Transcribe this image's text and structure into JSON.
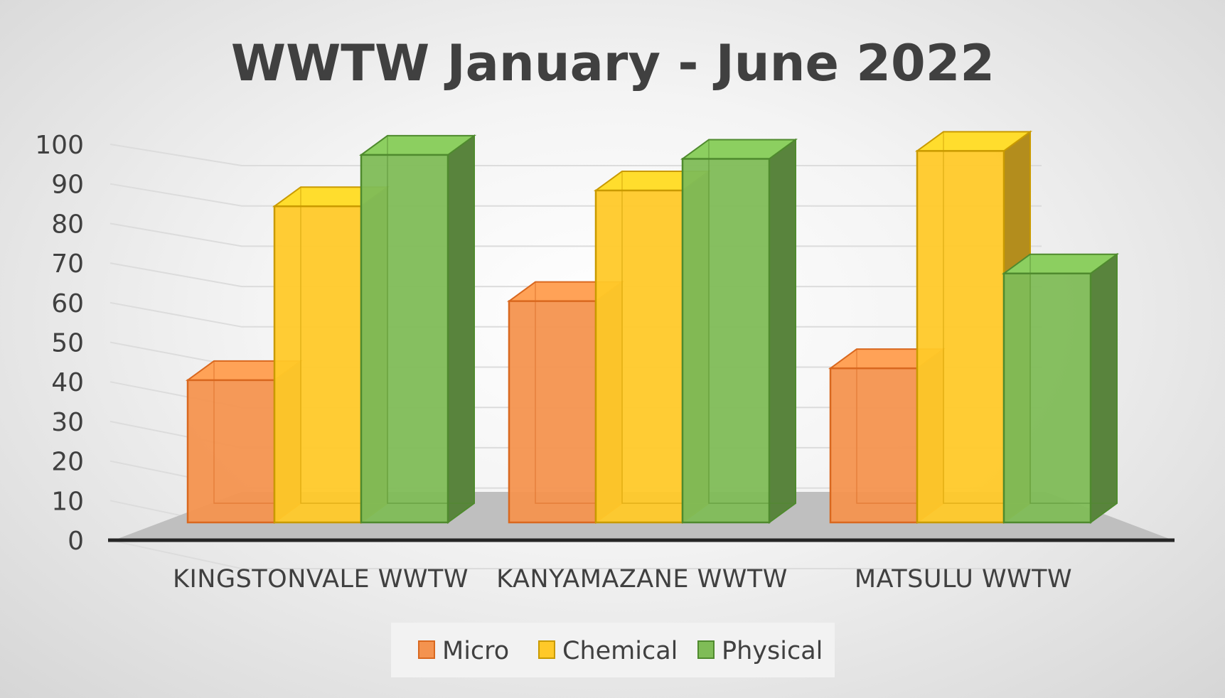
{
  "chart_data": {
    "type": "bar",
    "title": "WWTW January - June 2022",
    "categories": [
      "KINGSTONVALE WWTW",
      "KANYAMAZANE WWTW",
      "MATSULU WWTW"
    ],
    "series": [
      {
        "name": "Micro",
        "values": [
          36,
          56,
          39
        ],
        "color": "#f4934f",
        "edge": "#d9681f"
      },
      {
        "name": "Chemical",
        "values": [
          80,
          84,
          94
        ],
        "color": "#ffc929",
        "edge": "#c99a00"
      },
      {
        "name": "Physical",
        "values": [
          93,
          92,
          63
        ],
        "color": "#7fbc57",
        "edge": "#4f8a2e"
      }
    ],
    "yticks": [
      "0",
      "10",
      "20",
      "30",
      "40",
      "50",
      "60",
      "70",
      "80",
      "90",
      "100"
    ],
    "ylim": [
      0,
      100
    ],
    "grid": true,
    "legend_position": "bottom"
  }
}
